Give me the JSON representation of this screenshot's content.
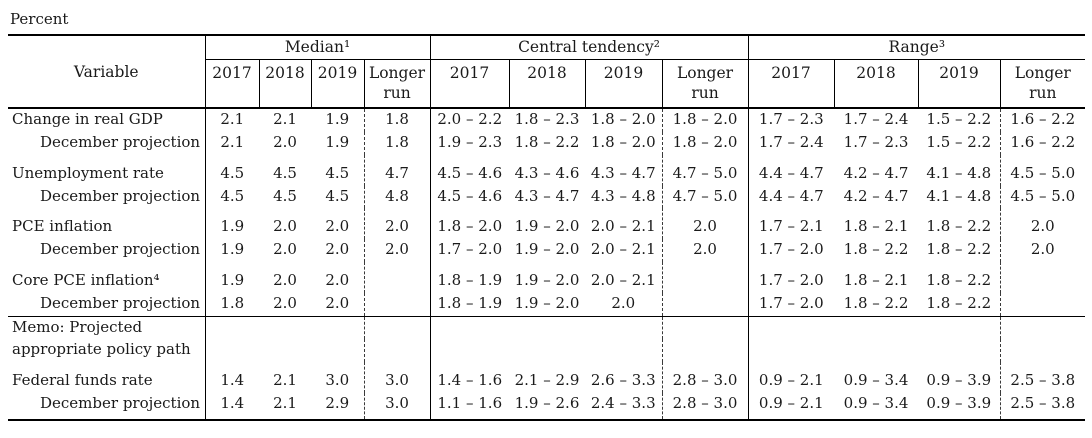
{
  "percent_label": "Percent",
  "header": {
    "variable": "Variable",
    "groups": [
      {
        "label": "Median¹"
      },
      {
        "label": "Central tendency²"
      },
      {
        "label": "Range³"
      }
    ],
    "years": [
      "2017",
      "2018",
      "2019",
      "Longer run"
    ]
  },
  "rows": [
    {
      "label": "Change in real GDP",
      "indent": false,
      "gap": false,
      "rule_above": false,
      "median": [
        "2.1",
        "2.1",
        "1.9",
        "1.8"
      ],
      "central": [
        "2.0 – 2.2",
        "1.8 – 2.3",
        "1.8 – 2.0",
        "1.8 – 2.0"
      ],
      "range": [
        "1.7 – 2.3",
        "1.7 – 2.4",
        "1.5 – 2.2",
        "1.6 – 2.2"
      ]
    },
    {
      "label": "December projection",
      "indent": true,
      "gap": false,
      "rule_above": false,
      "median": [
        "2.1",
        "2.0",
        "1.9",
        "1.8"
      ],
      "central": [
        "1.9 – 2.3",
        "1.8 – 2.2",
        "1.8 – 2.0",
        "1.8 – 2.0"
      ],
      "range": [
        "1.7 – 2.4",
        "1.7 – 2.3",
        "1.5 – 2.2",
        "1.6 – 2.2"
      ]
    },
    {
      "label": "Unemployment rate",
      "indent": false,
      "gap": true,
      "rule_above": false,
      "median": [
        "4.5",
        "4.5",
        "4.5",
        "4.7"
      ],
      "central": [
        "4.5 – 4.6",
        "4.3 – 4.6",
        "4.3 – 4.7",
        "4.7 – 5.0"
      ],
      "range": [
        "4.4 – 4.7",
        "4.2 – 4.7",
        "4.1 – 4.8",
        "4.5 – 5.0"
      ]
    },
    {
      "label": "December projection",
      "indent": true,
      "gap": false,
      "rule_above": false,
      "median": [
        "4.5",
        "4.5",
        "4.5",
        "4.8"
      ],
      "central": [
        "4.5 – 4.6",
        "4.3 – 4.7",
        "4.3 – 4.8",
        "4.7 – 5.0"
      ],
      "range": [
        "4.4 – 4.7",
        "4.2 – 4.7",
        "4.1 – 4.8",
        "4.5 – 5.0"
      ]
    },
    {
      "label": "PCE inflation",
      "indent": false,
      "gap": true,
      "rule_above": false,
      "median": [
        "1.9",
        "2.0",
        "2.0",
        "2.0"
      ],
      "central": [
        "1.8 – 2.0",
        "1.9 – 2.0",
        "2.0 – 2.1",
        "2.0"
      ],
      "range": [
        "1.7 – 2.1",
        "1.8 – 2.1",
        "1.8 – 2.2",
        "2.0"
      ]
    },
    {
      "label": "December projection",
      "indent": true,
      "gap": false,
      "rule_above": false,
      "median": [
        "1.9",
        "2.0",
        "2.0",
        "2.0"
      ],
      "central": [
        "1.7 – 2.0",
        "1.9 – 2.0",
        "2.0 – 2.1",
        "2.0"
      ],
      "range": [
        "1.7 – 2.0",
        "1.8 – 2.2",
        "1.8 – 2.2",
        "2.0"
      ]
    },
    {
      "label": "Core PCE inflation⁴",
      "indent": false,
      "gap": true,
      "rule_above": false,
      "median": [
        "1.9",
        "2.0",
        "2.0",
        ""
      ],
      "central": [
        "1.8 – 1.9",
        "1.9 – 2.0",
        "2.0 – 2.1",
        ""
      ],
      "range": [
        "1.7 – 2.0",
        "1.8 – 2.1",
        "1.8 – 2.2",
        ""
      ]
    },
    {
      "label": "December projection",
      "indent": true,
      "gap": false,
      "rule_above": false,
      "median": [
        "1.8",
        "2.0",
        "2.0",
        ""
      ],
      "central": [
        "1.8 – 1.9",
        "1.9 – 2.0",
        "2.0",
        ""
      ],
      "range": [
        "1.7 – 2.0",
        "1.8 – 2.2",
        "1.8 – 2.2",
        ""
      ]
    },
    {
      "label": "Memo: Projected",
      "indent": false,
      "gap": false,
      "rule_above": true,
      "median": [
        "",
        "",
        "",
        ""
      ],
      "central": [
        "",
        "",
        "",
        ""
      ],
      "range": [
        "",
        "",
        "",
        ""
      ]
    },
    {
      "label": "appropriate policy path",
      "indent": false,
      "gap": false,
      "rule_above": false,
      "median": [
        "",
        "",
        "",
        ""
      ],
      "central": [
        "",
        "",
        "",
        ""
      ],
      "range": [
        "",
        "",
        "",
        ""
      ]
    },
    {
      "label": "Federal funds rate",
      "indent": false,
      "gap": true,
      "rule_above": false,
      "median": [
        "1.4",
        "2.1",
        "3.0",
        "3.0"
      ],
      "central": [
        "1.4 – 1.6",
        "2.1 – 2.9",
        "2.6 – 3.3",
        "2.8 – 3.0"
      ],
      "range": [
        "0.9 – 2.1",
        "0.9 – 3.4",
        "0.9 – 3.9",
        "2.5 – 3.8"
      ]
    },
    {
      "label": "December projection",
      "indent": true,
      "gap": false,
      "rule_above": false,
      "median": [
        "1.4",
        "2.1",
        "2.9",
        "3.0"
      ],
      "central": [
        "1.1 – 1.6",
        "1.9 – 2.6",
        "2.4 – 3.3",
        "2.8 – 3.0"
      ],
      "range": [
        "0.9 – 2.1",
        "0.9 – 3.4",
        "0.9 – 3.9",
        "2.5 – 3.8"
      ]
    }
  ]
}
